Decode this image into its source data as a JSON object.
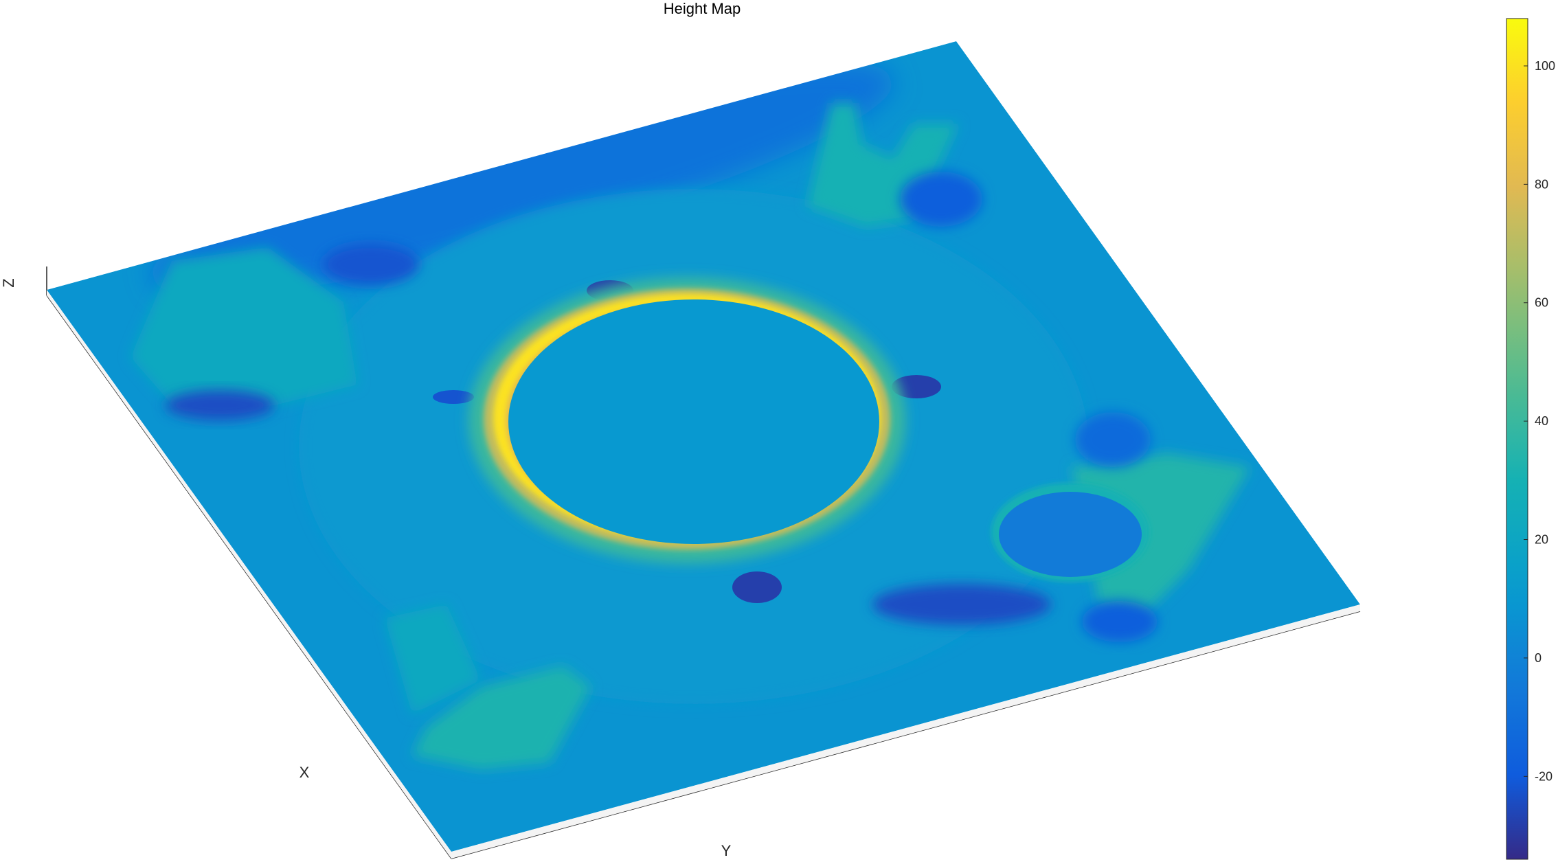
{
  "chart_data": {
    "type": "surface",
    "title": "Height Map",
    "xlabel": "X",
    "ylabel": "Y",
    "zlabel": "Z",
    "view": "3-D perspective surface, viewed from above at an oblique angle",
    "colormap": "parula",
    "colorbar": {
      "location": "right",
      "clim": [
        -34,
        108
      ],
      "ticks": [
        -20,
        0,
        20,
        40,
        60,
        80,
        100
      ],
      "tick_labels": [
        "-20",
        "0",
        "20",
        "40",
        "60",
        "80",
        "100"
      ]
    },
    "surface_features": [
      {
        "feature": "base plane",
        "z": 8
      },
      {
        "feature": "raised ring around central hole",
        "z_peak": 100
      },
      {
        "feature": "central circular hole floor",
        "z": 10
      },
      {
        "feature": "flange annulus",
        "z": 10
      },
      {
        "feature": "mounting tabs",
        "z": 30
      },
      {
        "feature": "recesses / pockets",
        "z": -20
      }
    ],
    "grid": false,
    "legend": "none"
  }
}
